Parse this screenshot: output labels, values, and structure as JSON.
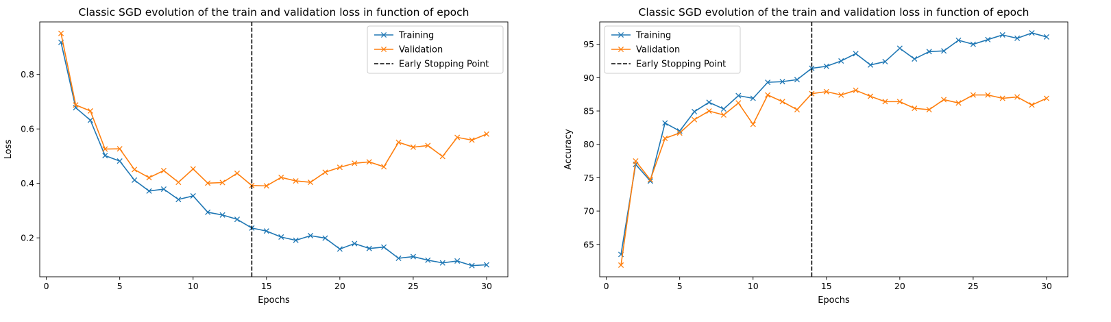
{
  "chart_data": [
    {
      "type": "line",
      "title": "Classic SGD evolution of the train and validation loss in function of epoch",
      "xlabel": "Epochs",
      "ylabel": "Loss",
      "xlim": [
        -0.45,
        31.45
      ],
      "ylim": [
        0.057,
        0.993
      ],
      "xticks": [
        0,
        5,
        10,
        15,
        20,
        25,
        30
      ],
      "yticks": [
        0.2,
        0.4,
        0.6,
        0.8
      ],
      "ytick_labels": [
        "0.2",
        "0.4",
        "0.6",
        "0.8"
      ],
      "x": [
        1,
        2,
        3,
        4,
        5,
        6,
        7,
        8,
        9,
        10,
        11,
        12,
        13,
        14,
        15,
        16,
        17,
        18,
        19,
        20,
        21,
        22,
        23,
        24,
        25,
        26,
        27,
        28,
        29,
        30
      ],
      "series": [
        {
          "name": "Training",
          "color": "#1f77b4",
          "marker": "x",
          "values": [
            0.918,
            0.678,
            0.632,
            0.502,
            0.482,
            0.412,
            0.372,
            0.379,
            0.341,
            0.354,
            0.294,
            0.284,
            0.268,
            0.236,
            0.225,
            0.203,
            0.191,
            0.208,
            0.199,
            0.159,
            0.179,
            0.161,
            0.166,
            0.125,
            0.131,
            0.118,
            0.108,
            0.115,
            0.098,
            0.101
          ]
        },
        {
          "name": "Validation",
          "color": "#ff7f0e",
          "marker": "x",
          "values": [
            0.951,
            0.688,
            0.666,
            0.526,
            0.527,
            0.451,
            0.421,
            0.447,
            0.404,
            0.453,
            0.401,
            0.403,
            0.437,
            0.392,
            0.391,
            0.422,
            0.409,
            0.404,
            0.441,
            0.459,
            0.474,
            0.479,
            0.461,
            0.551,
            0.533,
            0.539,
            0.499,
            0.569,
            0.559,
            0.581
          ]
        }
      ],
      "vline": {
        "x": 14,
        "label": "Early Stopping Point",
        "color": "#000000",
        "style": "dashed"
      },
      "legend": "top-right"
    },
    {
      "type": "line",
      "title": "Classic SGD evolution of the train and validation loss in function of epoch",
      "xlabel": "Epochs",
      "ylabel": "Accuracy",
      "xlim": [
        -0.45,
        31.45
      ],
      "ylim": [
        60.15,
        98.35
      ],
      "xticks": [
        0,
        5,
        10,
        15,
        20,
        25,
        30
      ],
      "yticks": [
        65,
        70,
        75,
        80,
        85,
        90,
        95
      ],
      "ytick_labels": [
        "65",
        "70",
        "75",
        "80",
        "85",
        "90",
        "95"
      ],
      "x": [
        1,
        2,
        3,
        4,
        5,
        6,
        7,
        8,
        9,
        10,
        11,
        12,
        13,
        14,
        15,
        16,
        17,
        18,
        19,
        20,
        21,
        22,
        23,
        24,
        25,
        26,
        27,
        28,
        29,
        30
      ],
      "series": [
        {
          "name": "Training",
          "color": "#1f77b4",
          "marker": "x",
          "values": [
            63.5,
            77.0,
            74.5,
            83.2,
            82.0,
            84.9,
            86.3,
            85.3,
            87.3,
            86.9,
            89.3,
            89.4,
            89.7,
            91.4,
            91.7,
            92.5,
            93.6,
            91.9,
            92.4,
            94.4,
            92.8,
            93.9,
            94.0,
            95.6,
            95.0,
            95.7,
            96.4,
            95.9,
            96.7,
            96.1
          ]
        },
        {
          "name": "Validation",
          "color": "#ff7f0e",
          "marker": "x",
          "values": [
            61.9,
            77.5,
            74.7,
            80.9,
            81.7,
            83.7,
            85.0,
            84.4,
            86.2,
            83.0,
            87.4,
            86.4,
            85.2,
            87.6,
            87.9,
            87.4,
            88.1,
            87.2,
            86.4,
            86.4,
            85.4,
            85.2,
            86.7,
            86.2,
            87.4,
            87.4,
            86.9,
            87.1,
            85.9,
            86.9
          ]
        }
      ],
      "vline": {
        "x": 14,
        "label": "Early Stopping Point",
        "color": "#000000",
        "style": "dashed"
      },
      "legend": "top-left"
    }
  ]
}
